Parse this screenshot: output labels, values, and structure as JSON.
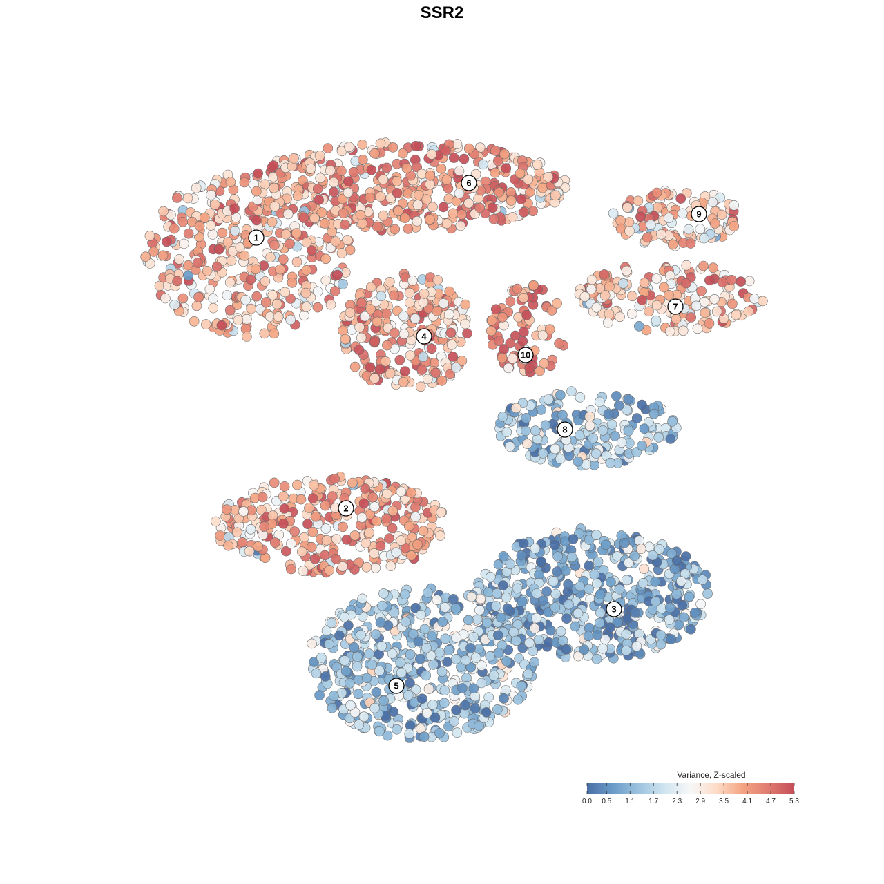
{
  "title": "SSR2",
  "legend": {
    "title": "Variance, Z-scaled",
    "ticks": [
      "0.0",
      "0.5",
      "1.1",
      "1.7",
      "2.3",
      "2.9",
      "3.5",
      "4.1",
      "4.7",
      "5.3"
    ],
    "placement": "bottom-right"
  },
  "colors": {
    "low": "#4a6fa5",
    "mid": "#f7f7f7",
    "high": "#c44e58",
    "stops": [
      "#4a6fa5",
      "#6a9cc8",
      "#9cc3df",
      "#d1e5f0",
      "#f7f7f7",
      "#fddbc7",
      "#f4a582",
      "#e07b70",
      "#c44e58"
    ]
  },
  "chart_data": {
    "type": "scatter",
    "title": "SSR2",
    "xlabel": "",
    "ylabel": "",
    "grid": false,
    "axes": "none",
    "color_variable": "Variance, Z-scaled",
    "color_range": [
      0.0,
      5.3
    ],
    "clusters": [
      {
        "id": "1",
        "mean_value": 3.7
      },
      {
        "id": "2",
        "mean_value": 3.8
      },
      {
        "id": "3",
        "mean_value": 1.0
      },
      {
        "id": "4",
        "mean_value": 3.8
      },
      {
        "id": "5",
        "mean_value": 1.5
      },
      {
        "id": "6",
        "mean_value": 4.0
      },
      {
        "id": "7",
        "mean_value": 3.6
      },
      {
        "id": "8",
        "mean_value": 1.4
      },
      {
        "id": "9",
        "mean_value": 3.3
      },
      {
        "id": "10",
        "mean_value": 4.3
      }
    ]
  }
}
